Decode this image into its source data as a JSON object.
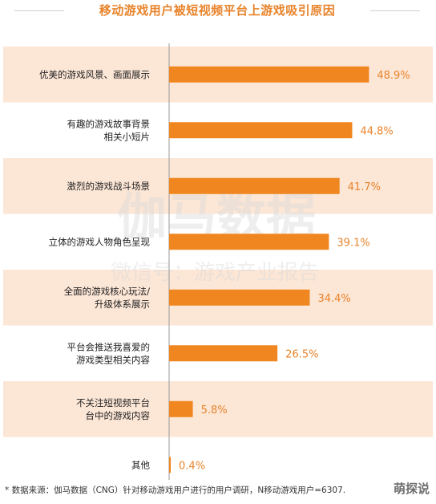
{
  "title": "移动游戏用户被短视频平台上游戏吸引原因",
  "watermark": {
    "main": "伽马数据",
    "sub": "微信号：游戏产业报告"
  },
  "colors": {
    "bar": "#f0861f",
    "band": "#fce6d6",
    "accent": "#e8832a"
  },
  "chart_data": {
    "type": "bar",
    "orientation": "horizontal",
    "title": "移动游戏用户被短视频平台上游戏吸引原因",
    "categories": [
      [
        "优美的游戏风景、画面展示"
      ],
      [
        "有趣的游戏故事背景",
        "相关小短片"
      ],
      [
        "激烈的游戏战斗场景"
      ],
      [
        "立体的游戏人物角色呈现"
      ],
      [
        "全面的游戏核心玩法/",
        "升级体系展示"
      ],
      [
        "平台会推送我喜爱的",
        "游戏类型相关内容"
      ],
      [
        "不关注短视频平台",
        "台中的游戏内容"
      ],
      [
        "其他"
      ]
    ],
    "values": [
      48.9,
      44.8,
      41.7,
      39.1,
      34.4,
      26.5,
      5.8,
      0.4
    ],
    "value_labels": [
      "48.9%",
      "44.8%",
      "41.7%",
      "39.1%",
      "34.4%",
      "26.5%",
      "5.8%",
      "0.4%"
    ],
    "unit": "%",
    "xlim": [
      0,
      50
    ],
    "banded_rows": [
      0,
      2,
      4,
      6
    ]
  },
  "footnote": "* 数据来源：伽马数据（CNG）针对移动游戏用户进行的用户调研，N移动游戏用户=6307.",
  "brand": "萌探说"
}
